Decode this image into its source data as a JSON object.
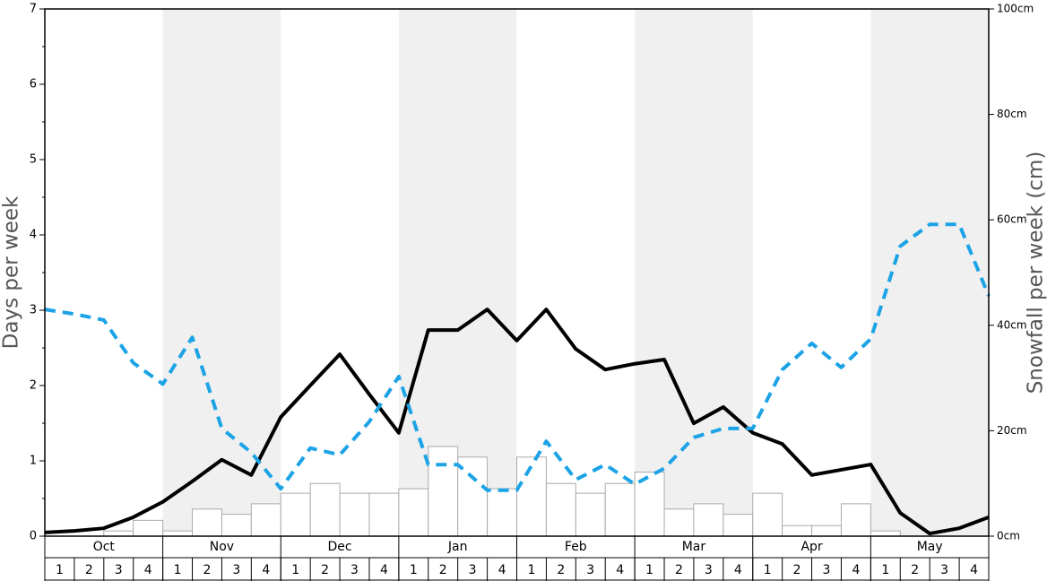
{
  "chart_data": {
    "type": "bar",
    "y_label": "Days per week",
    "y2_label": "Snowfall per week (cm)",
    "months": [
      "Oct",
      "Nov",
      "Dec",
      "Jan",
      "Feb",
      "Mar",
      "Apr",
      "May"
    ],
    "categories": [
      "1",
      "2",
      "3",
      "4",
      "1",
      "2",
      "3",
      "4",
      "1",
      "2",
      "3",
      "4",
      "1",
      "2",
      "3",
      "4",
      "1",
      "2",
      "3",
      "4",
      "1",
      "2",
      "3",
      "4",
      "1",
      "2",
      "3",
      "4",
      "1",
      "2",
      "3",
      "4"
    ],
    "xlim": [
      0,
      32
    ],
    "ylim": [
      0,
      7
    ],
    "yticks": [
      0,
      1,
      2,
      3,
      4,
      5,
      6,
      7
    ],
    "yminorticks": [
      0.5,
      1.5,
      2.5,
      3.5,
      4.5,
      5.5,
      6.5
    ],
    "y2lim": [
      0,
      100
    ],
    "y2ticks": [
      {
        "value": 0,
        "label": "0cm"
      },
      {
        "value": 20,
        "label": "20cm"
      },
      {
        "value": 40,
        "label": "40cm"
      },
      {
        "value": 60,
        "label": "60cm"
      },
      {
        "value": 80,
        "label": "80cm"
      },
      {
        "value": 100,
        "label": "100cm"
      }
    ],
    "band_color": "#f0f0f0",
    "series": [
      {
        "type": "bar",
        "color": "#ffffff",
        "edge_color": "#aaaaaa",
        "values": [
          0,
          0,
          0.07,
          0.21,
          0.07,
          0.36,
          0.29,
          0.43,
          0.57,
          0.7,
          0.57,
          0.57,
          0.63,
          1.19,
          1.05,
          0.63,
          1.05,
          0.7,
          0.57,
          0.7,
          0.85,
          0.36,
          0.43,
          0.29,
          0.57,
          0.14,
          0.14,
          0.43,
          0.07,
          0,
          0,
          0
        ]
      },
      {
        "type": "line",
        "axis": "y2",
        "color": "#000000",
        "dashed": false,
        "x": [
          0,
          1,
          2,
          3,
          4,
          5,
          6,
          7,
          8,
          9,
          10,
          11,
          12,
          13,
          14,
          15,
          16,
          17,
          18,
          19,
          20,
          21,
          22,
          23,
          24,
          25,
          26,
          27,
          28,
          29,
          30,
          31,
          32
        ],
        "values": [
          0.7,
          1.0,
          1.5,
          3.6,
          6.5,
          10.4,
          14.5,
          11.6,
          22.6,
          28.6,
          34.5,
          26.9,
          19.6,
          39.1,
          39.1,
          43.0,
          37.1,
          43.0,
          35.5,
          31.6,
          32.7,
          33.5,
          21.4,
          24.5,
          19.6,
          17.5,
          11.6,
          12.6,
          13.6,
          4.4,
          0.5,
          1.5,
          3.6
        ]
      },
      {
        "type": "line",
        "color": "#1ca3e6",
        "dashed": true,
        "x": [
          0,
          1,
          2,
          3,
          4,
          5,
          6,
          7,
          8,
          9,
          10,
          11,
          12,
          13,
          14,
          15,
          16,
          17,
          18,
          19,
          20,
          21,
          22,
          23,
          24,
          25,
          26,
          27,
          28,
          29,
          30,
          31,
          32
        ],
        "values": [
          3.01,
          2.95,
          2.87,
          2.3,
          2.02,
          2.64,
          1.43,
          1.11,
          0.63,
          1.17,
          1.08,
          1.52,
          2.12,
          0.95,
          0.95,
          0.61,
          0.61,
          1.26,
          0.75,
          0.95,
          0.69,
          0.9,
          1.31,
          1.43,
          1.43,
          2.21,
          2.56,
          2.24,
          2.62,
          3.85,
          4.14,
          4.14,
          3.19
        ]
      }
    ]
  }
}
